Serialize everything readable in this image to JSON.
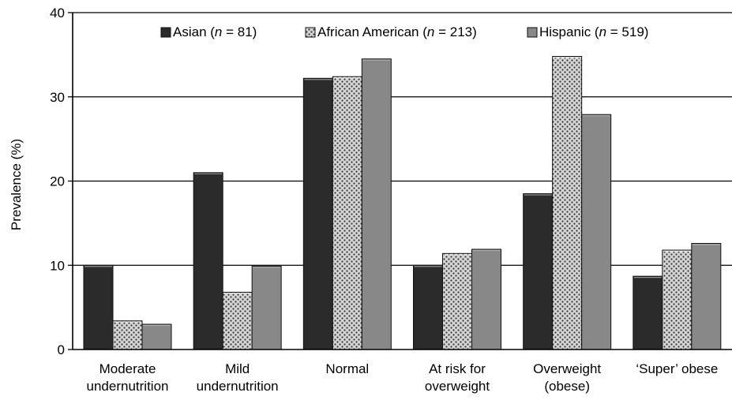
{
  "chart_data": {
    "type": "bar",
    "title": "",
    "xlabel": "",
    "ylabel": "Prevalence (%)",
    "ylim": [
      0,
      40
    ],
    "yticks": [
      0,
      10,
      20,
      30,
      40
    ],
    "grid": true,
    "legend_position": "top",
    "categories": [
      [
        "Moderate",
        "undernutrition"
      ],
      [
        "Mild",
        "undernutrition"
      ],
      [
        "Normal"
      ],
      [
        "At risk for",
        "overweight"
      ],
      [
        "Overweight",
        "(obese)"
      ],
      [
        "‘Super’ obese"
      ]
    ],
    "series": [
      {
        "name": "Asian (n = 81)",
        "name_parts": [
          "Asian (",
          "n",
          " = 81)"
        ],
        "values": [
          10,
          21,
          32.2,
          10,
          18.5,
          8.7
        ],
        "color": "#2b2b2b",
        "pattern": "solid"
      },
      {
        "name": "African American (n = 213)",
        "name_parts": [
          "African American (",
          "n",
          " = 213)"
        ],
        "values": [
          3.4,
          6.8,
          32.4,
          11.4,
          34.8,
          11.8
        ],
        "color": "#d0d0d0",
        "pattern": "dotted"
      },
      {
        "name": "Hispanic (n = 519)",
        "name_parts": [
          "Hispanic (",
          "n",
          " = 519)"
        ],
        "values": [
          3,
          9.9,
          34.5,
          11.9,
          27.9,
          12.6
        ],
        "color": "#888888",
        "pattern": "solid"
      }
    ]
  }
}
